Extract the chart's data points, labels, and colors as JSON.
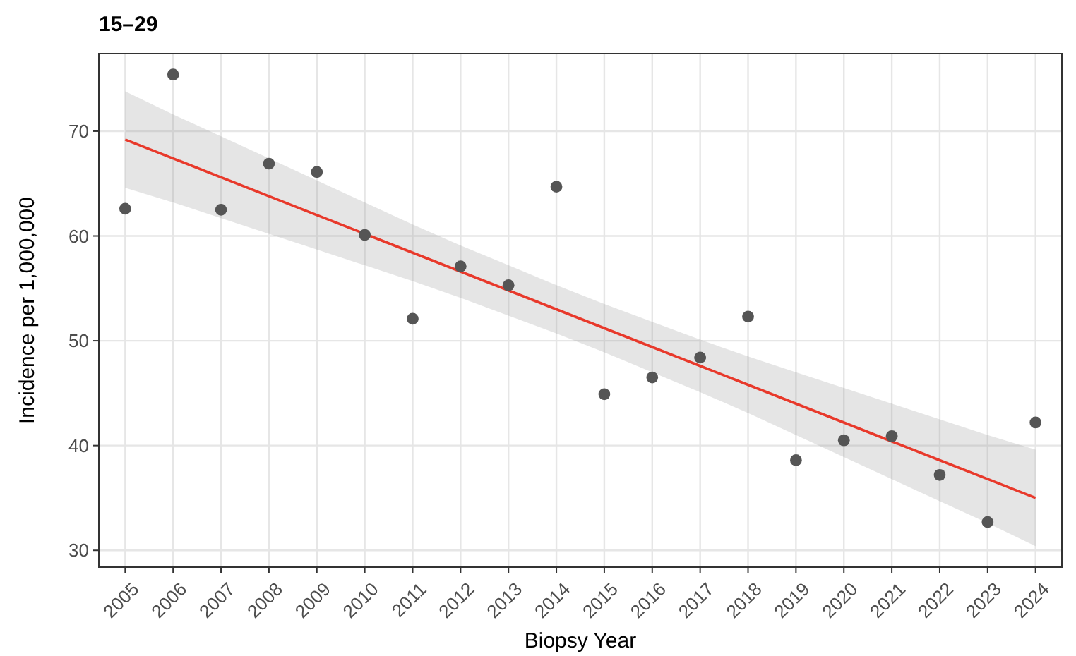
{
  "chart_data": {
    "type": "scatter",
    "title": "15–29",
    "xlabel": "Biopsy Year",
    "ylabel": "Incidence per 1,000,000",
    "categories": [
      "2005",
      "2006",
      "2007",
      "2008",
      "2009",
      "2010",
      "2011",
      "2012",
      "2013",
      "2014",
      "2015",
      "2016",
      "2017",
      "2018",
      "2019",
      "2020",
      "2021",
      "2022",
      "2023",
      "2024"
    ],
    "ylim": [
      28.4,
      77.4
    ],
    "yticks": [
      30,
      40,
      50,
      60,
      70
    ],
    "grid": true,
    "marker": "circle",
    "series": [
      {
        "type": "line",
        "color": "#e8392b",
        "line_style": "solid",
        "marker": "none",
        "values": [
          69.2,
          67.4,
          65.6,
          63.8,
          62.0,
          60.2,
          58.4,
          56.6,
          54.8,
          53.0,
          51.2,
          49.4,
          47.6,
          45.8,
          44.0,
          42.2,
          40.4,
          38.6,
          36.8,
          35.0
        ],
        "lower": [
          64.6,
          63.2,
          61.7,
          60.2,
          58.7,
          57.2,
          55.7,
          54.1,
          52.4,
          50.7,
          48.9,
          47.0,
          45.1,
          43.1,
          41.0,
          38.9,
          36.8,
          34.7,
          32.6,
          30.4
        ],
        "upper": [
          73.8,
          71.6,
          69.5,
          67.4,
          65.3,
          63.2,
          61.1,
          59.1,
          57.2,
          55.3,
          53.5,
          51.8,
          50.1,
          48.5,
          47.0,
          45.5,
          44.0,
          42.5,
          41.0,
          39.6
        ]
      },
      {
        "color": "#555555",
        "values": [
          62.6,
          75.4,
          62.5,
          66.9,
          66.1,
          60.1,
          52.1,
          57.1,
          55.3,
          64.7,
          44.9,
          46.5,
          48.4,
          52.3,
          38.6,
          40.5,
          40.9,
          37.2,
          32.7,
          42.2
        ]
      }
    ]
  }
}
